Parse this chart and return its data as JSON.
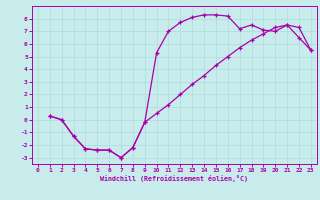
{
  "xlabel": "Windchill (Refroidissement éolien,°C)",
  "bg_color": "#c8ecec",
  "grid_color": "#b0dede",
  "line_color": "#aa00aa",
  "xlim": [
    -0.5,
    23.5
  ],
  "ylim": [
    -3.5,
    9.0
  ],
  "xticks": [
    0,
    1,
    2,
    3,
    4,
    5,
    6,
    7,
    8,
    9,
    10,
    11,
    12,
    13,
    14,
    15,
    16,
    17,
    18,
    19,
    20,
    21,
    22,
    23
  ],
  "yticks": [
    -3,
    -2,
    -1,
    0,
    1,
    2,
    3,
    4,
    5,
    6,
    7,
    8
  ],
  "curve1_x": [
    1,
    2,
    3,
    4,
    5,
    6,
    7,
    8,
    9,
    10,
    11,
    12,
    13,
    14,
    15,
    16,
    17,
    18,
    19,
    20,
    21,
    22,
    23
  ],
  "curve1_y": [
    0.3,
    0.0,
    -1.3,
    -2.3,
    -2.4,
    -2.4,
    -3.0,
    -2.2,
    -0.2,
    5.3,
    7.0,
    7.7,
    8.1,
    8.3,
    8.3,
    8.2,
    7.2,
    7.5,
    7.1,
    7.0,
    7.5,
    6.5,
    5.5
  ],
  "curve2_x": [
    1,
    2,
    3,
    4,
    5,
    6,
    7,
    8,
    9,
    10,
    11,
    12,
    13,
    14,
    15,
    16,
    17,
    18,
    19,
    20,
    21,
    22,
    23
  ],
  "curve2_y": [
    0.3,
    0.0,
    -1.3,
    -2.3,
    -2.4,
    -2.4,
    -3.0,
    -2.2,
    -0.2,
    0.5,
    1.2,
    2.0,
    2.8,
    3.5,
    4.3,
    5.0,
    5.7,
    6.3,
    6.8,
    7.3,
    7.5,
    7.3,
    5.5
  ]
}
